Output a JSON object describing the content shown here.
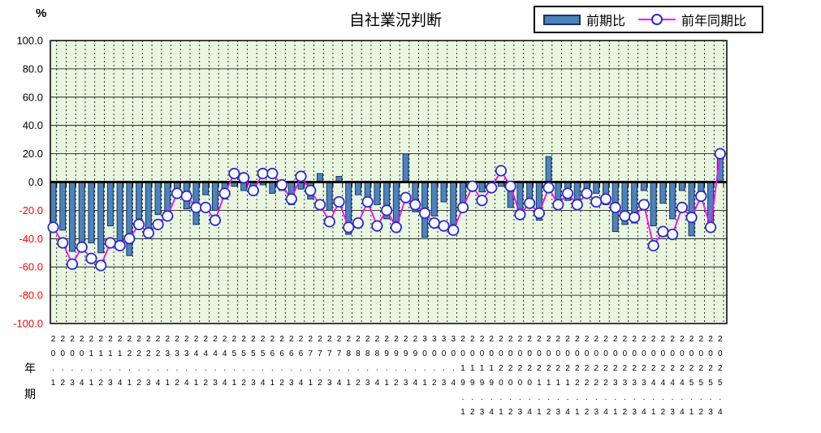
{
  "header": {
    "percent_label": "%"
  },
  "legend_note": "top-right boxed legend",
  "chart_data": {
    "type": "bar+line",
    "title": "自社業況判断",
    "ylabel": "%",
    "xlabel_year": "年",
    "xlabel_period": "期",
    "ylim": [
      -100,
      100
    ],
    "ytick_step": 20,
    "grid": true,
    "legend_position": "top-right",
    "y_tick_labels": [
      "100.0",
      "80.0",
      "60.0",
      "40.0",
      "20.0",
      "0.0",
      "-20.0",
      "-40.0",
      "-60.0",
      "-80.0",
      "-100.0"
    ],
    "categories": [
      "20.1",
      "20.2",
      "20.3",
      "20.4",
      "21.1",
      "21.2",
      "21.3",
      "21.4",
      "22.1",
      "22.2",
      "22.3",
      "22.4",
      "23.1",
      "23.2",
      "23.4",
      "24.1",
      "24.2",
      "24.3",
      "24.4",
      "25.1",
      "25.2",
      "25.3",
      "25.4",
      "26.1",
      "26.2",
      "26.3",
      "26.4",
      "27.1",
      "27.2",
      "27.3",
      "27.4",
      "28.1",
      "28.2",
      "28.3",
      "28.4",
      "29.1",
      "29.2",
      "29.3",
      "29.4",
      "30.1",
      "30.2",
      "30.3",
      "30.4",
      "2019.1",
      "2019.2",
      "2019.3",
      "2019.4",
      "2020.1",
      "2020.2",
      "2020.3",
      "2020.4",
      "2021.1",
      "2021.2",
      "2021.3",
      "2021.4",
      "2022.1",
      "2022.2",
      "2022.3",
      "2022.4",
      "2023.1",
      "2023.2",
      "2023.3",
      "2023.4",
      "2024.1",
      "2024.2",
      "2024.3",
      "2024.4",
      "2025.1",
      "2025.2",
      "2025.3",
      "2025.4"
    ],
    "series": [
      {
        "name": "前期比",
        "type": "bar",
        "values": [
          -31,
          -34,
          -49,
          -47,
          -43,
          -50,
          -31,
          -43,
          -52,
          -26,
          -33,
          -23,
          -22,
          -7,
          -19,
          -30,
          -9,
          -20,
          -12,
          -3,
          -6,
          -6,
          -2,
          -8,
          -6,
          -16,
          -5,
          -12,
          6,
          -20,
          4,
          -37,
          -9,
          -15,
          -16,
          -26,
          -28,
          20,
          -21,
          -39,
          -24,
          -14,
          -30,
          -21,
          -6,
          -7,
          -2,
          -3,
          -18,
          -22,
          -18,
          -27,
          18,
          -17,
          -13,
          -16,
          -9,
          -8,
          -16,
          -35,
          -30,
          -29,
          -6,
          -31,
          -15,
          -26,
          -6,
          -38,
          -12,
          -30,
          20
        ]
      },
      {
        "name": "前年同期比",
        "type": "line",
        "marker": "open-circle",
        "values": [
          -32,
          -43,
          -58,
          -46,
          -54,
          -59,
          -43,
          -45,
          -40,
          -30,
          -36,
          -30,
          -24,
          -8,
          -10,
          -18,
          -18,
          -27,
          -8,
          6,
          3,
          -6,
          6,
          6,
          -2,
          -12,
          4,
          -6,
          -16,
          -28,
          -14,
          -32,
          -29,
          -14,
          -31,
          -20,
          -32,
          -11,
          -16,
          -22,
          -29,
          -31,
          -34,
          -18,
          -3,
          -13,
          -4,
          8,
          -3,
          -23,
          -15,
          -22,
          -4,
          -16,
          -8,
          -16,
          -8,
          -14,
          -12,
          -18,
          -24,
          -25,
          -16,
          -45,
          -35,
          -37,
          -18,
          -25,
          -10,
          -32,
          20
        ]
      }
    ],
    "colors": {
      "bar_fill": "#4f81bd",
      "bar_border": "#17375e",
      "line": "#ff00ff",
      "marker_fill": "#ffffff",
      "marker_border": "#2a2ad4",
      "plot_bg": "#e9f7e1",
      "grid": "#000000",
      "negative_tick": "#ff0000",
      "positive_tick": "#000000"
    }
  }
}
